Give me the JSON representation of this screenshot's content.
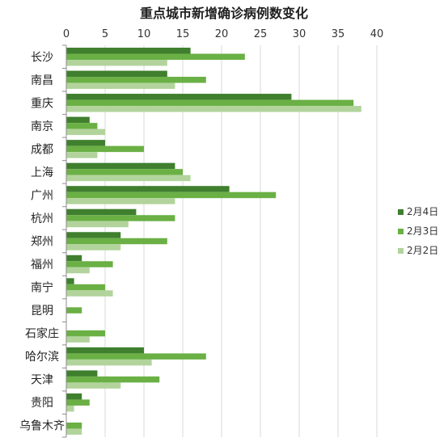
{
  "chart_data": {
    "type": "bar",
    "orientation": "horizontal",
    "title": "重点城市新增确诊病例数变化",
    "xlabel": "",
    "ylabel": "",
    "xlim": [
      0,
      40
    ],
    "xticks": [
      "0",
      "5",
      "10",
      "15",
      "20",
      "25",
      "30",
      "35",
      "40"
    ],
    "grid": "vertical",
    "legend_position": "right",
    "categories": [
      "长沙",
      "南昌",
      "重庆",
      "南京",
      "成都",
      "上海",
      "广州",
      "杭州",
      "郑州",
      "福州",
      "南宁",
      "昆明",
      "石家庄",
      "哈尔滨",
      "天津",
      "贵阳",
      "乌鲁木齐"
    ],
    "series": [
      {
        "name": "2月4日",
        "color": "#3f7f2e",
        "values": [
          16,
          13,
          29,
          3,
          5,
          14,
          21,
          9,
          7,
          2,
          1,
          0,
          0,
          10,
          4,
          2,
          0
        ]
      },
      {
        "name": "2月3日",
        "color": "#6ab045",
        "values": [
          23,
          18,
          37,
          4,
          10,
          15,
          27,
          14,
          13,
          6,
          5,
          2,
          5,
          18,
          12,
          3,
          2
        ]
      },
      {
        "name": "2月2日",
        "color": "#b2d49c",
        "values": [
          13,
          14,
          38,
          5,
          4,
          16,
          14,
          8,
          7,
          3,
          6,
          0,
          3,
          11,
          7,
          1,
          2
        ]
      }
    ]
  }
}
